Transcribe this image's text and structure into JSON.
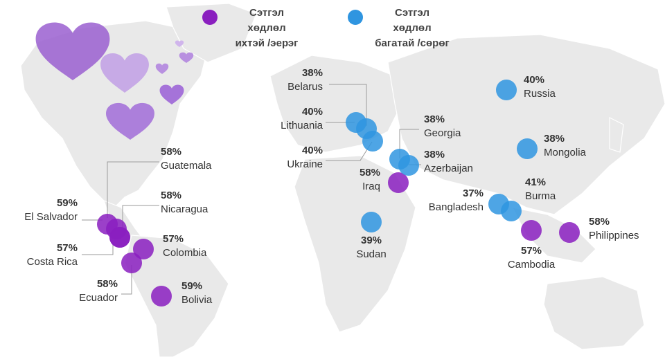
{
  "legend": {
    "high": {
      "line1": "Сэтгэл",
      "line2": "хөдлөл",
      "line3": "ихтэй /эерэг",
      "color": "#8a1fbf"
    },
    "low": {
      "line1": "Сэтгэл",
      "line2": "хөдлөл",
      "line3": "багатай /сөрөг",
      "color": "#2f95e0"
    }
  },
  "countries": [
    {
      "name": "Guatemala",
      "pct": "58%",
      "group": "high"
    },
    {
      "name": "Nicaragua",
      "pct": "58%",
      "group": "high"
    },
    {
      "name": "El Salvador",
      "pct": "59%",
      "group": "high"
    },
    {
      "name": "Costa Rica",
      "pct": "57%",
      "group": "high"
    },
    {
      "name": "Colombia",
      "pct": "57%",
      "group": "high"
    },
    {
      "name": "Ecuador",
      "pct": "58%",
      "group": "high"
    },
    {
      "name": "Bolivia",
      "pct": "59%",
      "group": "high"
    },
    {
      "name": "Belarus",
      "pct": "38%",
      "group": "low"
    },
    {
      "name": "Lithuania",
      "pct": "40%",
      "group": "low"
    },
    {
      "name": "Ukraine",
      "pct": "40%",
      "group": "low"
    },
    {
      "name": "Iraq",
      "pct": "58%",
      "group": "high"
    },
    {
      "name": "Georgia",
      "pct": "38%",
      "group": "low"
    },
    {
      "name": "Azerbaijan",
      "pct": "38%",
      "group": "low"
    },
    {
      "name": "Sudan",
      "pct": "39%",
      "group": "low"
    },
    {
      "name": "Russia",
      "pct": "40%",
      "group": "low"
    },
    {
      "name": "Mongolia",
      "pct": "38%",
      "group": "low"
    },
    {
      "name": "Burma",
      "pct": "41%",
      "group": "low"
    },
    {
      "name": "Bangladesh",
      "pct": "37%",
      "group": "low"
    },
    {
      "name": "Cambodia",
      "pct": "57%",
      "group": "high"
    },
    {
      "name": "Philippines",
      "pct": "58%",
      "group": "high"
    }
  ]
}
